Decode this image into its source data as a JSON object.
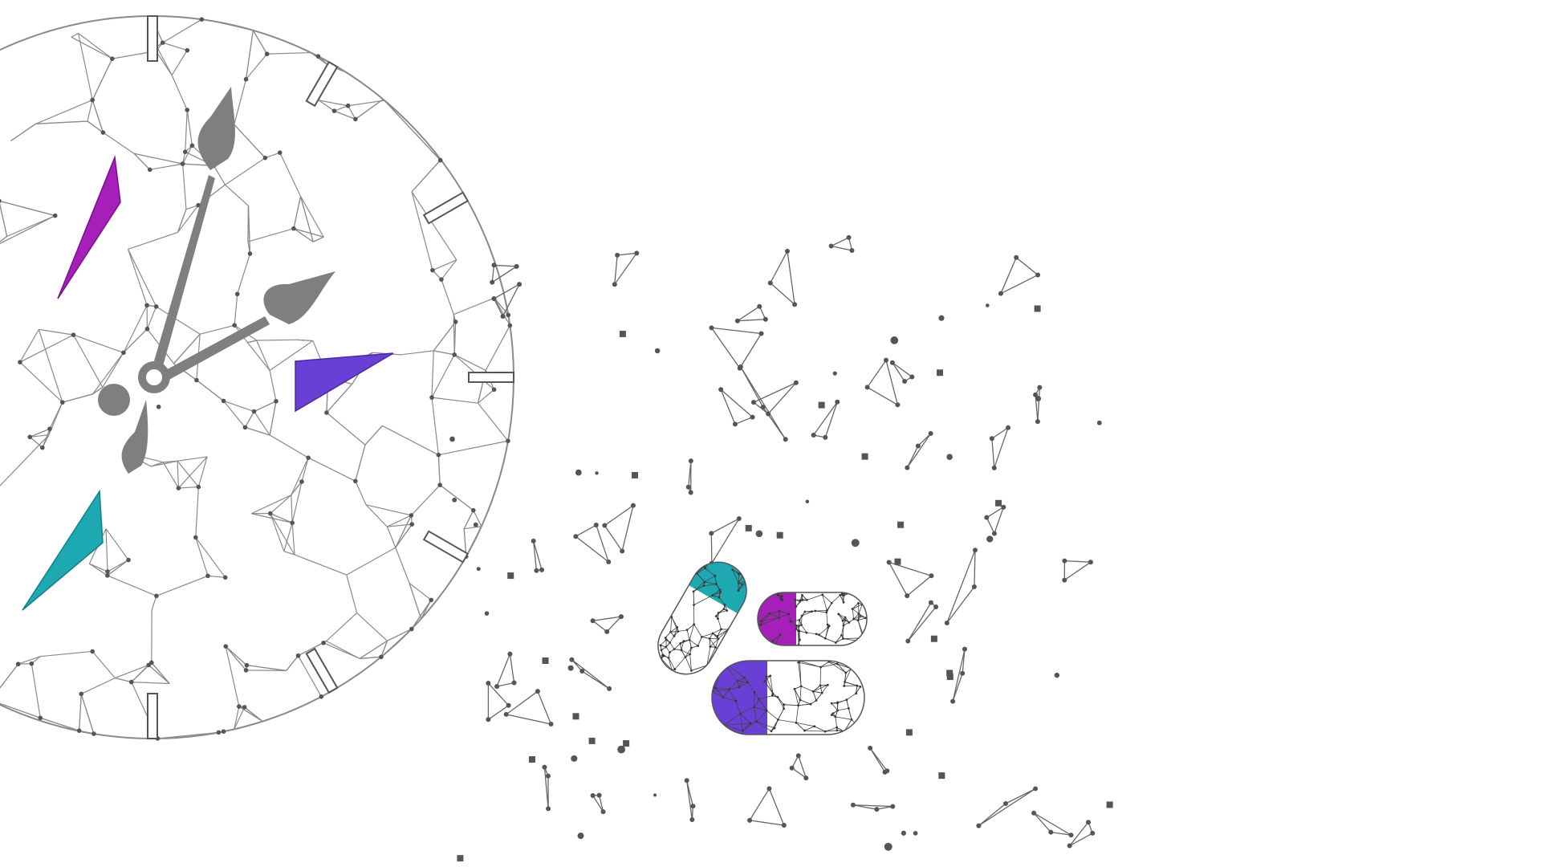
{
  "scene": {
    "background": "#ffffff",
    "line_color": "#8a8a8a",
    "node_color": "#555555",
    "hand_color": "#7f7f7f",
    "accent_magenta": "#a61fb8",
    "accent_violet": "#6a3fd6",
    "accent_teal": "#1ea9b2",
    "icons": [
      "wireframe-clock-icon",
      "capsule-icon",
      "particle-scatter-icon"
    ]
  }
}
